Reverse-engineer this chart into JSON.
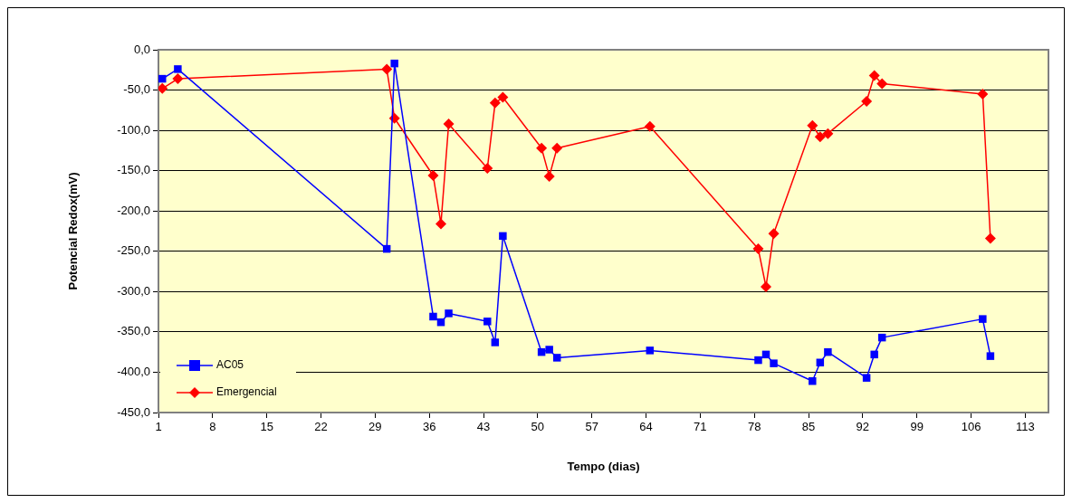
{
  "chart_data": {
    "type": "line",
    "xlabel": "Tempo (dias)",
    "ylabel": "Potencial Redox(mV)",
    "xlim": [
      1,
      116
    ],
    "xticks": [
      1,
      8,
      15,
      22,
      29,
      36,
      43,
      50,
      57,
      64,
      71,
      78,
      85,
      92,
      99,
      106,
      113
    ],
    "ylim": [
      -450,
      0
    ],
    "yticks": [
      {
        "value": 0,
        "label": "0,0"
      },
      {
        "value": -50,
        "label": "-50,0"
      },
      {
        "value": -100,
        "label": "-100,0"
      },
      {
        "value": -150,
        "label": "-150,0"
      },
      {
        "value": -200,
        "label": "-200,0"
      },
      {
        "value": -250,
        "label": "-250,0"
      },
      {
        "value": -300,
        "label": "-300,0"
      },
      {
        "value": -350,
        "label": "-350,0"
      },
      {
        "value": -400,
        "label": "-400,0"
      },
      {
        "value": -450,
        "label": "-450,0"
      }
    ],
    "grid": "y",
    "legend": "bottom left",
    "series": [
      {
        "name": "AC05",
        "color": "#0000ff",
        "marker": "square",
        "x": [
          1.5,
          3.5,
          30.5,
          31.5,
          36.5,
          37.5,
          38.5,
          43.5,
          44.5,
          45.5,
          50.5,
          51.5,
          52.5,
          64.5,
          78.5,
          79.5,
          80.5,
          85.5,
          86.5,
          87.5,
          92.5,
          93.5,
          94.5,
          107.5,
          108.5
        ],
        "values": [
          -36,
          -24,
          -247,
          -17,
          -331,
          -338,
          -327,
          -337,
          -363,
          -231,
          -375,
          -372,
          -382,
          -373,
          -385,
          -378,
          -389,
          -411,
          -388,
          -375,
          -407,
          -378,
          -357,
          -334,
          -380
        ]
      },
      {
        "name": "Emergencial",
        "color": "#ff0000",
        "marker": "diamond",
        "x": [
          1.5,
          3.5,
          30.5,
          31.5,
          36.5,
          37.5,
          38.5,
          43.5,
          44.5,
          45.5,
          50.5,
          51.5,
          52.5,
          64.5,
          78.5,
          79.5,
          80.5,
          85.5,
          86.5,
          87.5,
          92.5,
          93.5,
          94.5,
          107.5,
          108.5
        ],
        "values": [
          -48,
          -36,
          -24,
          -85,
          -156,
          -216,
          -92,
          -147,
          -66,
          -59,
          -122,
          -157,
          -122,
          -95,
          -247,
          -294,
          -228,
          -94,
          -108,
          -104,
          -64,
          -32,
          -42,
          -55,
          -234
        ]
      }
    ]
  }
}
